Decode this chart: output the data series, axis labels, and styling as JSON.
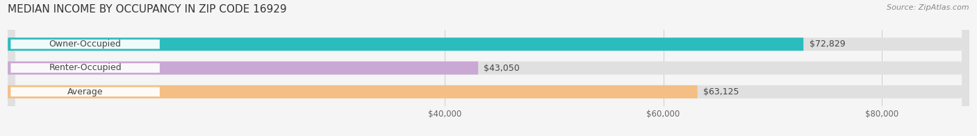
{
  "title": "MEDIAN INCOME BY OCCUPANCY IN ZIP CODE 16929",
  "source": "Source: ZipAtlas.com",
  "categories": [
    "Owner-Occupied",
    "Renter-Occupied",
    "Average"
  ],
  "values": [
    72829,
    43050,
    63125
  ],
  "bar_colors": [
    "#2bbcbd",
    "#c9a8d4",
    "#f5be85"
  ],
  "value_labels": [
    "$72,829",
    "$43,050",
    "$63,125"
  ],
  "x_ticks": [
    40000,
    60000,
    80000
  ],
  "x_tick_labels": [
    "$40,000",
    "$60,000",
    "$80,000"
  ],
  "xlim": [
    0,
    88000
  ],
  "background_color": "#f5f5f5",
  "bar_bg_color": "#e0e0e0",
  "title_fontsize": 11,
  "source_fontsize": 8,
  "label_fontsize": 9,
  "tick_fontsize": 8.5,
  "bar_height": 0.55,
  "pill_rounding": 0.18
}
